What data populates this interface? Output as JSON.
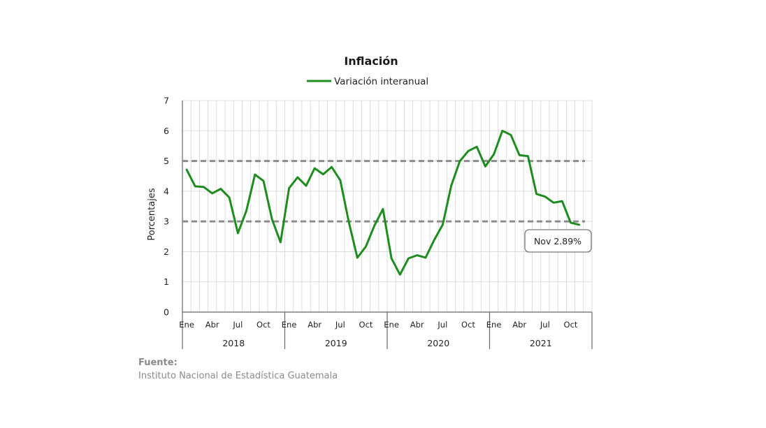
{
  "colors": {
    "series": "#1e8c1e",
    "reference": "#8c8c8c",
    "grid": "#d4d4d4",
    "axis": "#666666"
  },
  "source": {
    "label": "Fuente:",
    "text": "Instituto Nacional de Estadística Guatemala"
  },
  "chart_data": {
    "type": "line",
    "title": "Inflación",
    "xlabel": "",
    "ylabel": "Porcentajes",
    "ylim": [
      0,
      7
    ],
    "yticks": [
      0,
      1,
      2,
      3,
      4,
      5,
      6,
      7
    ],
    "grid": true,
    "legend_position": "top",
    "months_per_year": 12,
    "month_tick_labels": [
      {
        "month_index": 0,
        "label": "Ene"
      },
      {
        "month_index": 3,
        "label": "Abr"
      },
      {
        "month_index": 6,
        "label": "Jul"
      },
      {
        "month_index": 9,
        "label": "Oct"
      }
    ],
    "years": [
      "2018",
      "2019",
      "2020",
      "2021"
    ],
    "series": [
      {
        "name": "Variación interanual",
        "values": [
          4.71,
          4.16,
          4.14,
          3.93,
          4.08,
          3.79,
          2.61,
          3.36,
          4.55,
          4.34,
          3.07,
          2.31,
          4.1,
          4.46,
          4.18,
          4.76,
          4.56,
          4.8,
          4.36,
          2.98,
          1.8,
          2.17,
          2.86,
          3.41,
          1.78,
          1.24,
          1.78,
          1.88,
          1.8,
          2.38,
          2.89,
          4.18,
          4.99,
          5.33,
          5.47,
          4.82,
          5.22,
          6.0,
          5.86,
          5.19,
          5.16,
          3.91,
          3.82,
          3.62,
          3.67,
          2.96,
          2.89
        ]
      }
    ],
    "reference_lines": [
      5,
      3
    ],
    "annotation": {
      "text": "Nov 2.89%",
      "x_index": 46,
      "value": 2.89
    }
  }
}
